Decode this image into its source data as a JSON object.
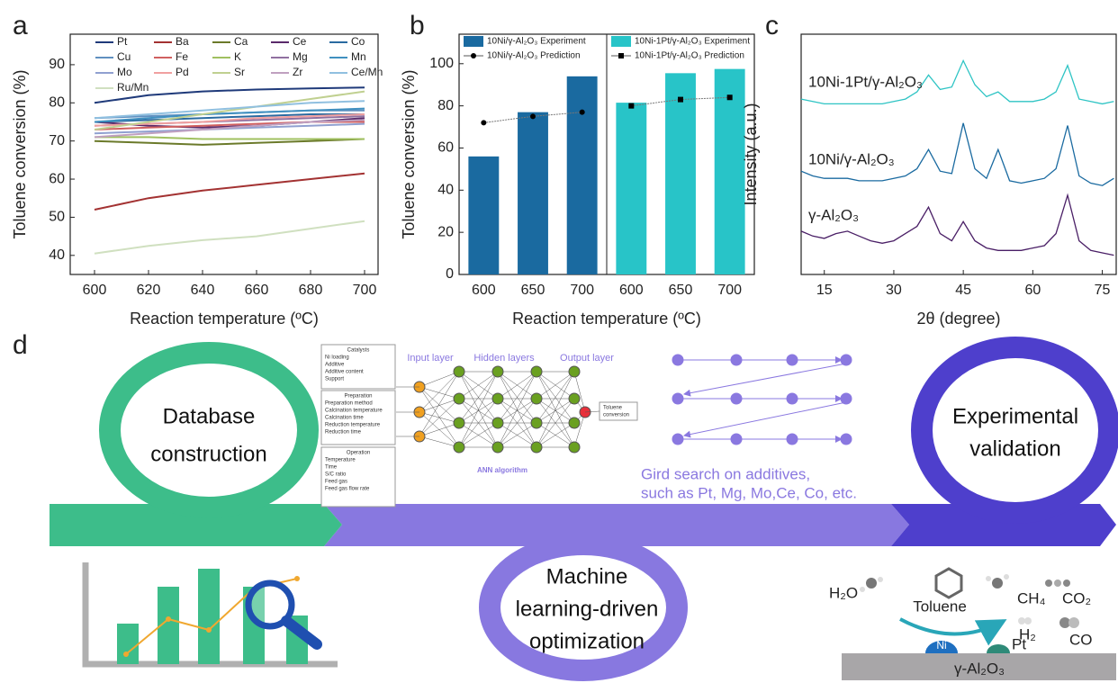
{
  "chart_data": [
    {
      "type": "line",
      "panel": "a",
      "x_label": "Reaction temperature (ºC)",
      "y_label": "Toluene conversion (%)",
      "x": [
        600,
        620,
        640,
        660,
        680,
        700
      ],
      "xlim": [
        591,
        705
      ],
      "xticks": [
        600,
        620,
        640,
        660,
        680,
        700
      ],
      "ylim": [
        35,
        98
      ],
      "yticks": [
        40,
        50,
        60,
        70,
        80,
        90
      ],
      "legend": "upper-left",
      "series": [
        {
          "name": "Pt",
          "color": "#1f3a7a",
          "values": [
            80,
            82,
            83,
            83.5,
            83.8,
            84
          ]
        },
        {
          "name": "Ba",
          "color": "#a33232",
          "values": [
            52,
            55,
            57,
            58.5,
            60,
            61.5
          ]
        },
        {
          "name": "Ca",
          "color": "#6b7a2a",
          "values": [
            70,
            69.5,
            69,
            69.5,
            70,
            70.5
          ]
        },
        {
          "name": "Ce",
          "color": "#5a2a6a",
          "values": [
            75,
            74,
            73.5,
            74,
            75,
            76
          ]
        },
        {
          "name": "Co",
          "color": "#2a6aa0",
          "values": [
            75,
            75.5,
            76,
            76.5,
            77,
            77
          ]
        },
        {
          "name": "Cu",
          "color": "#6090c0",
          "values": [
            76,
            76.5,
            77,
            77.5,
            78,
            78
          ]
        },
        {
          "name": "Fe",
          "color": "#d06060",
          "values": [
            73,
            73.5,
            74,
            74.5,
            75,
            75
          ]
        },
        {
          "name": "K",
          "color": "#a0c060",
          "values": [
            71,
            71,
            70.5,
            70.5,
            70.5,
            70.5
          ]
        },
        {
          "name": "Mg",
          "color": "#9070a0",
          "values": [
            74,
            74.5,
            75,
            75.5,
            76,
            76.5
          ]
        },
        {
          "name": "Mn",
          "color": "#4090c0",
          "values": [
            75,
            76,
            77,
            77.5,
            78,
            78.5
          ]
        },
        {
          "name": "Mo",
          "color": "#90a0d0",
          "values": [
            72,
            72.5,
            73,
            73.5,
            74,
            74.5
          ]
        },
        {
          "name": "Pd",
          "color": "#f0a0a0",
          "values": [
            74,
            74.5,
            75,
            76,
            76.5,
            77
          ]
        },
        {
          "name": "Sr",
          "color": "#c0d090",
          "values": [
            73,
            75,
            77,
            79,
            81,
            83
          ]
        },
        {
          "name": "Zr",
          "color": "#c0a0c0",
          "values": [
            71,
            72,
            73,
            74,
            75,
            75.5
          ]
        },
        {
          "name": "Ce/Mn",
          "color": "#90c0e0",
          "values": [
            76,
            77,
            78,
            79,
            80,
            80.5
          ]
        },
        {
          "name": "Ru/Mn",
          "color": "#d0e0c0",
          "values": [
            40.5,
            42.5,
            44,
            45,
            47,
            49
          ]
        }
      ]
    },
    {
      "type": "bar",
      "panel": "b",
      "x_label": "Reaction temperature (ºC)",
      "y_label": "Toluene conversion (%)",
      "categories": [
        "600",
        "650",
        "700",
        "600",
        "650",
        "700"
      ],
      "ylim": [
        0,
        114
      ],
      "yticks": [
        0,
        20,
        40,
        60,
        80,
        100
      ],
      "series": [
        {
          "name": "10Ni/γ-Al₂O₃ Experiment",
          "kind": "bar",
          "color": "#1a6aa0",
          "values": [
            56,
            77,
            94,
            null,
            null,
            null
          ]
        },
        {
          "name": "10Ni/γ-Al₂O₃ Prediction",
          "kind": "line",
          "marker": "circle",
          "color": "#000000",
          "values": [
            72,
            75,
            77,
            null,
            null,
            null
          ]
        },
        {
          "name": "10Ni-1Pt/γ-Al₂O₃ Experiment",
          "kind": "bar",
          "color": "#28c4c8",
          "values": [
            null,
            null,
            null,
            81.5,
            95.5,
            97.5
          ]
        },
        {
          "name": "10Ni-1Pt/γ-Al₂O₃ Prediction",
          "kind": "line",
          "marker": "square",
          "color": "#000000",
          "values": [
            null,
            null,
            null,
            80,
            83,
            84
          ]
        }
      ]
    },
    {
      "type": "line",
      "panel": "c",
      "x_label": "2θ (degree)",
      "y_label": "Intensity (a.u.)",
      "x": [
        10,
        12.5,
        15,
        17.5,
        20,
        22.5,
        25,
        27.5,
        30,
        32.5,
        35,
        37.5,
        40,
        42.5,
        45,
        47.5,
        50,
        52.5,
        55,
        57.5,
        60,
        62.5,
        65,
        67.5,
        70,
        72.5,
        75,
        77.5
      ],
      "xlim": [
        10,
        78
      ],
      "xticks": [
        15,
        30,
        45,
        60,
        75
      ],
      "ylim": [
        0,
        100
      ],
      "series": [
        {
          "name": "10Ni-1Pt/γ-Al₂O₃",
          "color": "#2ec4c4",
          "values": [
            73,
            72,
            71,
            71,
            71,
            71,
            71,
            71,
            72,
            73,
            76,
            83,
            77,
            78,
            89,
            79,
            74,
            76,
            72,
            72,
            72,
            73,
            76,
            87,
            73,
            72,
            71,
            72
          ]
        },
        {
          "name": "10Ni/γ-Al₂O₃",
          "color": "#1a6aa0",
          "values": [
            43,
            41,
            40,
            40,
            40,
            39,
            39,
            39,
            40,
            41,
            44,
            52,
            43,
            42,
            63,
            44,
            40,
            52,
            39,
            38,
            39,
            40,
            44,
            62,
            41,
            38,
            37,
            40
          ]
        },
        {
          "name": "γ-Al₂O₃",
          "color": "#4a1f66",
          "values": [
            18,
            16,
            15,
            17,
            18,
            16,
            14,
            13,
            14,
            17,
            20,
            28,
            17,
            14,
            22,
            14,
            11,
            10,
            10,
            10,
            11,
            12,
            17,
            33,
            14,
            10,
            9,
            8
          ]
        }
      ]
    }
  ],
  "diagram": {
    "label": "d",
    "stages": [
      {
        "lines": [
          "Database",
          "construction"
        ]
      },
      {
        "lines": [
          "Machine",
          "learning-driven",
          "optimization"
        ]
      },
      {
        "lines": [
          "Experimental",
          "validation"
        ]
      }
    ],
    "grid_search": [
      "Gird search on additives,",
      "such as Pt, Mg, Mo,Ce, Co, etc."
    ],
    "ann": {
      "layers": [
        "Input layer",
        "Hidden layers",
        "Output layer"
      ],
      "algorithm": "ANN algorithm",
      "output": [
        "Toluene",
        "conversion"
      ],
      "groups": [
        {
          "title": "Catalysts",
          "items": [
            "Ni loading",
            "Additive",
            "Additive content",
            "Support"
          ]
        },
        {
          "title": "Preparation",
          "items": [
            "Preparation method",
            "Calcination temperature",
            "Calcination time",
            "Reduction temperature",
            "Reduction time"
          ]
        },
        {
          "title": "Operation",
          "items": [
            "Temperature",
            "Time",
            "S/C ratio",
            "Feed gas",
            "Feed gas flow rate"
          ]
        }
      ]
    },
    "reaction": {
      "molecules": [
        "H₂O",
        "Toluene",
        "CH₄",
        "CO₂",
        "H₂",
        "CO"
      ],
      "metals": [
        "Ni",
        "Pt"
      ],
      "support": "γ-Al₂O₃"
    }
  }
}
